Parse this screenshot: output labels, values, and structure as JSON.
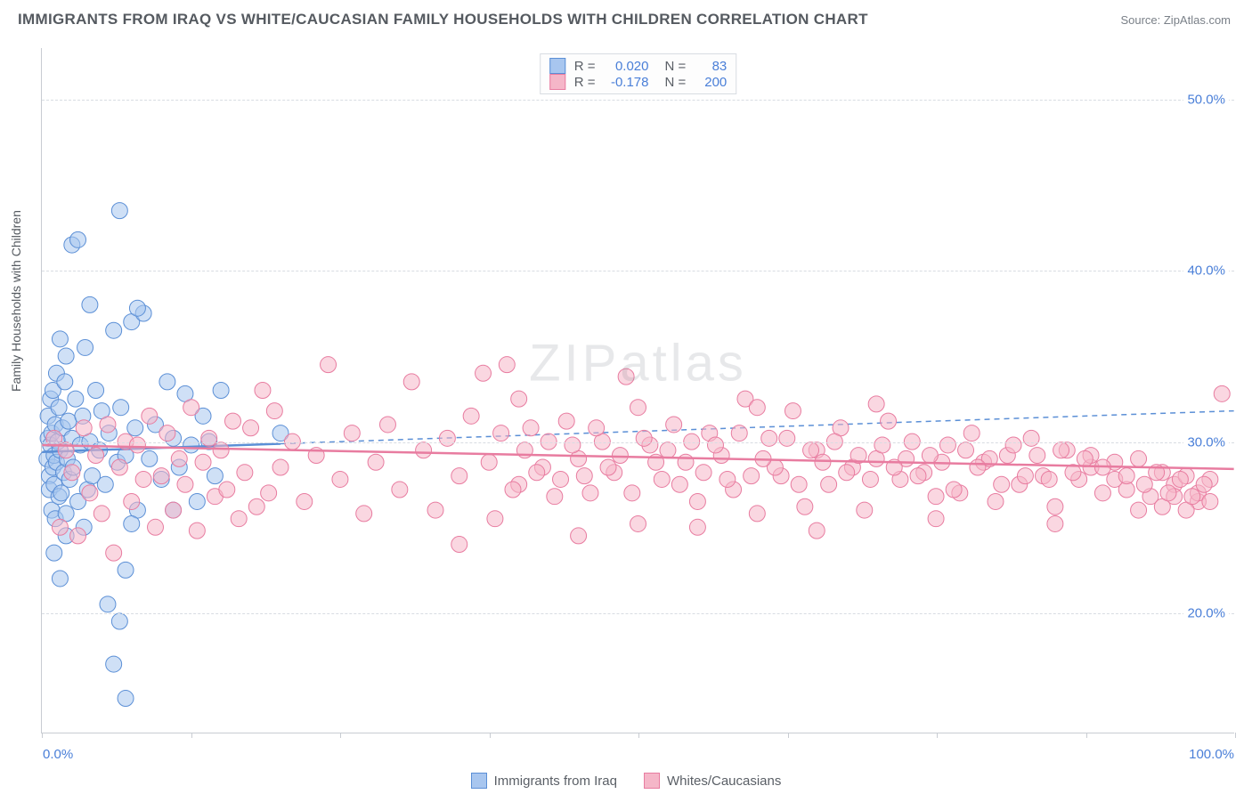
{
  "title": "IMMIGRANTS FROM IRAQ VS WHITE/CAUCASIAN FAMILY HOUSEHOLDS WITH CHILDREN CORRELATION CHART",
  "source": "Source: ZipAtlas.com",
  "watermark": "ZIPatlas",
  "yaxis_title": "Family Households with Children",
  "chart": {
    "type": "scatter",
    "background": "#ffffff",
    "grid_color": "#d8dce2",
    "axis_color": "#c8ccd2",
    "text_color": "#555a60",
    "tick_label_color": "#4a7fd8",
    "marker_radius": 9,
    "marker_opacity": 0.55,
    "xlim": [
      0,
      100
    ],
    "ylim": [
      13,
      53
    ],
    "yticks": [
      20,
      30,
      40,
      50
    ],
    "ytick_labels": [
      "20.0%",
      "30.0%",
      "40.0%",
      "50.0%"
    ],
    "xtick_positions": [
      0,
      12.5,
      25,
      37.5,
      50,
      62.5,
      75,
      87.5,
      100
    ],
    "x_label_min": "0.0%",
    "x_label_max": "100.0%"
  },
  "series": [
    {
      "name": "Immigrants from Iraq",
      "color_fill": "#a8c6ef",
      "color_stroke": "#5b8fd6",
      "R": "0.020",
      "N": "83",
      "trend": {
        "y_at_xmin": 29.4,
        "y_at_xmax": 31.8,
        "xmax_solid": 20
      },
      "points": [
        [
          0.4,
          29.0
        ],
        [
          0.5,
          30.2
        ],
        [
          0.5,
          31.5
        ],
        [
          0.6,
          28.0
        ],
        [
          0.6,
          27.2
        ],
        [
          0.7,
          29.8
        ],
        [
          0.7,
          32.5
        ],
        [
          0.8,
          26.0
        ],
        [
          0.8,
          30.5
        ],
        [
          0.9,
          28.5
        ],
        [
          0.9,
          33.0
        ],
        [
          1.0,
          27.5
        ],
        [
          1.0,
          29.2
        ],
        [
          1.1,
          31.0
        ],
        [
          1.1,
          25.5
        ],
        [
          1.2,
          34.0
        ],
        [
          1.2,
          28.8
        ],
        [
          1.3,
          30.0
        ],
        [
          1.4,
          26.8
        ],
        [
          1.4,
          32.0
        ],
        [
          1.5,
          29.5
        ],
        [
          1.6,
          27.0
        ],
        [
          1.7,
          30.8
        ],
        [
          1.8,
          28.2
        ],
        [
          1.9,
          33.5
        ],
        [
          2.0,
          25.8
        ],
        [
          2.1,
          29.0
        ],
        [
          2.2,
          31.2
        ],
        [
          2.3,
          27.8
        ],
        [
          2.5,
          30.2
        ],
        [
          2.6,
          28.5
        ],
        [
          2.8,
          32.5
        ],
        [
          3.0,
          26.5
        ],
        [
          3.2,
          29.8
        ],
        [
          3.4,
          31.5
        ],
        [
          3.6,
          35.5
        ],
        [
          3.8,
          27.2
        ],
        [
          4.0,
          30.0
        ],
        [
          4.2,
          28.0
        ],
        [
          4.5,
          33.0
        ],
        [
          4.8,
          29.5
        ],
        [
          5.0,
          31.8
        ],
        [
          5.3,
          27.5
        ],
        [
          5.6,
          30.5
        ],
        [
          6.0,
          36.5
        ],
        [
          6.3,
          28.8
        ],
        [
          6.6,
          32.0
        ],
        [
          7.0,
          29.2
        ],
        [
          7.5,
          37.0
        ],
        [
          7.8,
          30.8
        ],
        [
          8.0,
          26.0
        ],
        [
          8.5,
          37.5
        ],
        [
          9.0,
          29.0
        ],
        [
          9.5,
          31.0
        ],
        [
          10.0,
          27.8
        ],
        [
          10.5,
          33.5
        ],
        [
          11.0,
          30.2
        ],
        [
          11.5,
          28.5
        ],
        [
          12.0,
          32.8
        ],
        [
          12.5,
          29.8
        ],
        [
          13.0,
          26.5
        ],
        [
          13.5,
          31.5
        ],
        [
          14.0,
          30.0
        ],
        [
          14.5,
          28.0
        ],
        [
          15.0,
          33.0
        ],
        [
          2.0,
          35.0
        ],
        [
          2.5,
          41.5
        ],
        [
          3.0,
          41.8
        ],
        [
          1.5,
          36.0
        ],
        [
          4.0,
          38.0
        ],
        [
          8.0,
          37.8
        ],
        [
          6.5,
          43.5
        ],
        [
          1.0,
          23.5
        ],
        [
          2.0,
          24.5
        ],
        [
          3.5,
          25.0
        ],
        [
          1.5,
          22.0
        ],
        [
          7.0,
          22.5
        ],
        [
          7.5,
          25.2
        ],
        [
          6.0,
          17.0
        ],
        [
          5.5,
          20.5
        ],
        [
          6.5,
          19.5
        ],
        [
          7.0,
          15.0
        ],
        [
          11.0,
          26.0
        ],
        [
          20.0,
          30.5
        ]
      ]
    },
    {
      "name": "Whites/Caucasians",
      "color_fill": "#f5b6c8",
      "color_stroke": "#e87ca0",
      "R": "-0.178",
      "N": "200",
      "trend": {
        "y_at_xmin": 29.8,
        "y_at_xmax": 28.4,
        "xmax_solid": 100
      },
      "points": [
        [
          1.0,
          30.2
        ],
        [
          1.5,
          25.0
        ],
        [
          2.0,
          29.5
        ],
        [
          2.5,
          28.2
        ],
        [
          3.0,
          24.5
        ],
        [
          3.5,
          30.8
        ],
        [
          4.0,
          27.0
        ],
        [
          4.5,
          29.2
        ],
        [
          5.0,
          25.8
        ],
        [
          5.5,
          31.0
        ],
        [
          6.0,
          23.5
        ],
        [
          6.5,
          28.5
        ],
        [
          7.0,
          30.0
        ],
        [
          7.5,
          26.5
        ],
        [
          8.0,
          29.8
        ],
        [
          8.5,
          27.8
        ],
        [
          9.0,
          31.5
        ],
        [
          9.5,
          25.0
        ],
        [
          10.0,
          28.0
        ],
        [
          10.5,
          30.5
        ],
        [
          11.0,
          26.0
        ],
        [
          11.5,
          29.0
        ],
        [
          12.0,
          27.5
        ],
        [
          12.5,
          32.0
        ],
        [
          13.0,
          24.8
        ],
        [
          13.5,
          28.8
        ],
        [
          14.0,
          30.2
        ],
        [
          14.5,
          26.8
        ],
        [
          15.0,
          29.5
        ],
        [
          15.5,
          27.2
        ],
        [
          16.0,
          31.2
        ],
        [
          16.5,
          25.5
        ],
        [
          17.0,
          28.2
        ],
        [
          17.5,
          30.8
        ],
        [
          18.0,
          26.2
        ],
        [
          18.5,
          33.0
        ],
        [
          19.0,
          27.0
        ],
        [
          19.5,
          31.8
        ],
        [
          20.0,
          28.5
        ],
        [
          21.0,
          30.0
        ],
        [
          22.0,
          26.5
        ],
        [
          23.0,
          29.2
        ],
        [
          24.0,
          34.5
        ],
        [
          25.0,
          27.8
        ],
        [
          26.0,
          30.5
        ],
        [
          27.0,
          25.8
        ],
        [
          28.0,
          28.8
        ],
        [
          29.0,
          31.0
        ],
        [
          30.0,
          27.2
        ],
        [
          31.0,
          33.5
        ],
        [
          32.0,
          29.5
        ],
        [
          33.0,
          26.0
        ],
        [
          34.0,
          30.2
        ],
        [
          35.0,
          28.0
        ],
        [
          36.0,
          31.5
        ],
        [
          37.0,
          34.0
        ],
        [
          38.0,
          25.5
        ],
        [
          39.0,
          34.5
        ],
        [
          40.0,
          27.5
        ],
        [
          41.0,
          30.8
        ],
        [
          42.0,
          28.5
        ],
        [
          43.0,
          26.8
        ],
        [
          44.0,
          31.2
        ],
        [
          45.0,
          29.0
        ],
        [
          46.0,
          27.0
        ],
        [
          47.0,
          30.0
        ],
        [
          48.0,
          28.2
        ],
        [
          49.0,
          33.8
        ],
        [
          50.0,
          25.2
        ],
        [
          51.0,
          29.8
        ],
        [
          52.0,
          27.8
        ],
        [
          53.0,
          31.0
        ],
        [
          54.0,
          28.8
        ],
        [
          55.0,
          26.5
        ],
        [
          56.0,
          30.5
        ],
        [
          57.0,
          29.2
        ],
        [
          58.0,
          27.2
        ],
        [
          59.0,
          32.5
        ],
        [
          60.0,
          25.8
        ],
        [
          61.0,
          30.2
        ],
        [
          62.0,
          28.0
        ],
        [
          63.0,
          31.8
        ],
        [
          64.0,
          26.2
        ],
        [
          65.0,
          29.5
        ],
        [
          66.0,
          27.5
        ],
        [
          67.0,
          30.8
        ],
        [
          68.0,
          28.5
        ],
        [
          69.0,
          26.0
        ],
        [
          70.0,
          29.0
        ],
        [
          71.0,
          31.2
        ],
        [
          72.0,
          27.8
        ],
        [
          73.0,
          30.0
        ],
        [
          74.0,
          28.2
        ],
        [
          75.0,
          26.8
        ],
        [
          76.0,
          29.8
        ],
        [
          77.0,
          27.0
        ],
        [
          78.0,
          30.5
        ],
        [
          79.0,
          28.8
        ],
        [
          80.0,
          26.5
        ],
        [
          81.0,
          29.2
        ],
        [
          82.0,
          27.5
        ],
        [
          83.0,
          30.2
        ],
        [
          84.0,
          28.0
        ],
        [
          85.0,
          26.2
        ],
        [
          86.0,
          29.5
        ],
        [
          87.0,
          27.8
        ],
        [
          88.0,
          28.5
        ],
        [
          89.0,
          27.0
        ],
        [
          90.0,
          28.8
        ],
        [
          91.0,
          27.2
        ],
        [
          92.0,
          29.0
        ],
        [
          93.0,
          26.8
        ],
        [
          94.0,
          28.2
        ],
        [
          95.0,
          27.5
        ],
        [
          96.0,
          28.0
        ],
        [
          97.0,
          26.5
        ],
        [
          98.0,
          27.8
        ],
        [
          99.0,
          32.8
        ],
        [
          45.0,
          24.5
        ],
        [
          55.0,
          25.0
        ],
        [
          65.0,
          24.8
        ],
        [
          75.0,
          25.5
        ],
        [
          85.0,
          25.2
        ],
        [
          35.0,
          24.0
        ],
        [
          60.0,
          32.0
        ],
        [
          70.0,
          32.2
        ],
        [
          50.0,
          32.0
        ],
        [
          40.0,
          32.5
        ],
        [
          92.0,
          26.0
        ],
        [
          94.0,
          26.2
        ],
        [
          95.0,
          26.8
        ],
        [
          96.0,
          26.0
        ],
        [
          97.0,
          27.0
        ],
        [
          98.0,
          26.5
        ],
        [
          88.0,
          29.2
        ],
        [
          89.0,
          28.5
        ],
        [
          90.0,
          27.8
        ],
        [
          91.0,
          28.0
        ],
        [
          92.5,
          27.5
        ],
        [
          93.5,
          28.2
        ],
        [
          94.5,
          27.0
        ],
        [
          95.5,
          27.8
        ],
        [
          96.5,
          26.8
        ],
        [
          97.5,
          27.5
        ],
        [
          87.5,
          29.0
        ],
        [
          86.5,
          28.2
        ],
        [
          85.5,
          29.5
        ],
        [
          84.5,
          27.8
        ],
        [
          83.5,
          29.2
        ],
        [
          82.5,
          28.0
        ],
        [
          81.5,
          29.8
        ],
        [
          80.5,
          27.5
        ],
        [
          79.5,
          29.0
        ],
        [
          78.5,
          28.5
        ],
        [
          77.5,
          29.5
        ],
        [
          76.5,
          27.2
        ],
        [
          75.5,
          28.8
        ],
        [
          74.5,
          29.2
        ],
        [
          73.5,
          28.0
        ],
        [
          72.5,
          29.0
        ],
        [
          71.5,
          28.5
        ],
        [
          70.5,
          29.8
        ],
        [
          69.5,
          27.8
        ],
        [
          68.5,
          29.2
        ],
        [
          67.5,
          28.2
        ],
        [
          66.5,
          30.0
        ],
        [
          65.5,
          28.8
        ],
        [
          64.5,
          29.5
        ],
        [
          63.5,
          27.5
        ],
        [
          62.5,
          30.2
        ],
        [
          61.5,
          28.5
        ],
        [
          60.5,
          29.0
        ],
        [
          59.5,
          28.0
        ],
        [
          58.5,
          30.5
        ],
        [
          57.5,
          27.8
        ],
        [
          56.5,
          29.8
        ],
        [
          55.5,
          28.2
        ],
        [
          54.5,
          30.0
        ],
        [
          53.5,
          27.5
        ],
        [
          52.5,
          29.5
        ],
        [
          51.5,
          28.8
        ],
        [
          50.5,
          30.2
        ],
        [
          49.5,
          27.0
        ],
        [
          48.5,
          29.2
        ],
        [
          47.5,
          28.5
        ],
        [
          46.5,
          30.8
        ],
        [
          45.5,
          28.0
        ],
        [
          44.5,
          29.8
        ],
        [
          43.5,
          27.8
        ],
        [
          42.5,
          30.0
        ],
        [
          41.5,
          28.2
        ],
        [
          40.5,
          29.5
        ],
        [
          39.5,
          27.2
        ],
        [
          38.5,
          30.5
        ],
        [
          37.5,
          28.8
        ]
      ]
    }
  ],
  "legend_bottom": [
    {
      "label": "Immigrants from Iraq",
      "fill": "#a8c6ef",
      "stroke": "#5b8fd6"
    },
    {
      "label": "Whites/Caucasians",
      "fill": "#f5b6c8",
      "stroke": "#e87ca0"
    }
  ]
}
